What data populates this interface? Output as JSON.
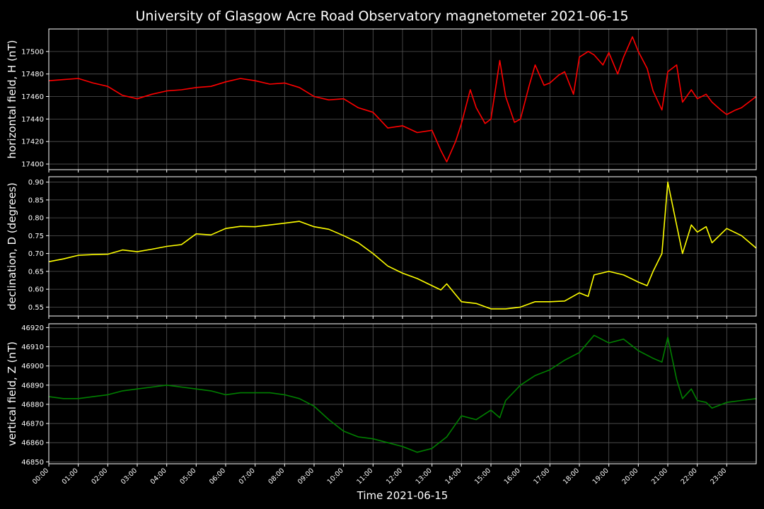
{
  "chart_data": [
    {
      "type": "line",
      "title": "University of Glasgow Acre Road Observatory magnetometer 2021-06-15",
      "ylabel": "horizontal field, H (nT)",
      "xlabel": "",
      "ylim": [
        17395,
        17520
      ],
      "yticks": [
        17400,
        17420,
        17440,
        17460,
        17480,
        17500
      ],
      "grid": true,
      "series": [
        {
          "color": "#ff0000",
          "x": [
            0,
            0.5,
            1,
            1.5,
            2,
            2.5,
            3,
            3.5,
            4,
            4.5,
            5,
            5.5,
            6,
            6.5,
            7,
            7.5,
            8,
            8.5,
            9,
            9.5,
            10,
            10.5,
            11,
            11.5,
            12,
            12.5,
            13,
            13.3,
            13.5,
            13.8,
            14,
            14.3,
            14.5,
            14.8,
            15,
            15.3,
            15.5,
            15.8,
            16,
            16.3,
            16.5,
            16.8,
            17,
            17.3,
            17.5,
            17.8,
            18,
            18.3,
            18.5,
            18.8,
            19,
            19.3,
            19.5,
            19.8,
            20,
            20.3,
            20.5,
            20.8,
            21,
            21.3,
            21.5,
            21.8,
            22,
            22.3,
            22.5,
            22.8,
            23,
            23.3,
            23.5,
            24
          ],
          "values": [
            17474,
            17475,
            17476,
            17472,
            17469,
            17461,
            17458,
            17462,
            17465,
            17466,
            17468,
            17469,
            17473,
            17476,
            17474,
            17471,
            17472,
            17468,
            17460,
            17457,
            17458,
            17450,
            17446,
            17432,
            17434,
            17428,
            17430,
            17412,
            17402,
            17420,
            17436,
            17466,
            17450,
            17436,
            17440,
            17492,
            17460,
            17437,
            17440,
            17470,
            17488,
            17470,
            17472,
            17479,
            17482,
            17462,
            17495,
            17500,
            17497,
            17488,
            17499,
            17480,
            17495,
            17513,
            17500,
            17485,
            17465,
            17448,
            17482,
            17488,
            17455,
            17466,
            17458,
            17462,
            17455,
            17448,
            17444,
            17448,
            17450,
            17460
          ]
        }
      ]
    },
    {
      "type": "line",
      "ylabel": "declination, D (degrees)",
      "xlabel": "",
      "ylim": [
        0.525,
        0.915
      ],
      "yticks": [
        0.55,
        0.6,
        0.65,
        0.7,
        0.75,
        0.8,
        0.85,
        0.9
      ],
      "grid": true,
      "series": [
        {
          "color": "#ffff00",
          "x": [
            0,
            0.5,
            1,
            1.5,
            2,
            2.5,
            3,
            3.5,
            4,
            4.5,
            5,
            5.5,
            6,
            6.5,
            7,
            7.5,
            8,
            8.5,
            9,
            9.5,
            10,
            10.5,
            11,
            11.5,
            12,
            12.5,
            13,
            13.3,
            13.5,
            14,
            14.5,
            15,
            15.5,
            16,
            16.5,
            17,
            17.5,
            18,
            18.3,
            18.5,
            19,
            19.5,
            20,
            20.3,
            20.5,
            20.8,
            21,
            21.2,
            21.5,
            21.8,
            22,
            22.3,
            22.5,
            23,
            23.5,
            24
          ],
          "values": [
            0.677,
            0.685,
            0.695,
            0.697,
            0.698,
            0.71,
            0.705,
            0.712,
            0.72,
            0.725,
            0.755,
            0.752,
            0.77,
            0.776,
            0.775,
            0.78,
            0.785,
            0.79,
            0.775,
            0.768,
            0.75,
            0.73,
            0.7,
            0.665,
            0.645,
            0.63,
            0.61,
            0.598,
            0.615,
            0.565,
            0.56,
            0.545,
            0.545,
            0.55,
            0.565,
            0.565,
            0.567,
            0.59,
            0.58,
            0.64,
            0.65,
            0.64,
            0.62,
            0.61,
            0.65,
            0.7,
            0.9,
            0.82,
            0.7,
            0.78,
            0.76,
            0.775,
            0.73,
            0.77,
            0.75,
            0.715
          ]
        }
      ]
    },
    {
      "type": "line",
      "ylabel": "vertical field, Z (nT)",
      "xlabel": "Time 2021-06-15",
      "ylim": [
        46849,
        46922
      ],
      "yticks": [
        46850,
        46860,
        46870,
        46880,
        46890,
        46900,
        46910,
        46920
      ],
      "grid": true,
      "categories": [
        "00:00",
        "01:00",
        "02:00",
        "03:00",
        "04:00",
        "05:00",
        "06:00",
        "07:00",
        "08:00",
        "09:00",
        "10:00",
        "11:00",
        "12:00",
        "13:00",
        "14:00",
        "15:00",
        "16:00",
        "17:00",
        "18:00",
        "19:00",
        "20:00",
        "21:00",
        "22:00",
        "23:00"
      ],
      "series": [
        {
          "color": "#008000",
          "x": [
            0,
            0.5,
            1,
            1.5,
            2,
            2.5,
            3,
            3.5,
            4,
            4.5,
            5,
            5.5,
            6,
            6.5,
            7,
            7.5,
            8,
            8.5,
            9,
            9.5,
            10,
            10.5,
            11,
            11.5,
            12,
            12.5,
            13,
            13.5,
            14,
            14.5,
            15,
            15.3,
            15.5,
            16,
            16.5,
            17,
            17.5,
            18,
            18.5,
            19,
            19.5,
            20,
            20.5,
            20.8,
            21,
            21.3,
            21.5,
            21.8,
            22,
            22.3,
            22.5,
            23,
            23.5,
            24
          ],
          "values": [
            46884,
            46883,
            46883,
            46884,
            46885,
            46887,
            46888,
            46889,
            46890,
            46889,
            46888,
            46887,
            46885,
            46886,
            46886,
            46886,
            46885,
            46883,
            46879,
            46872,
            46866,
            46863,
            46862,
            46860,
            46858,
            46855,
            46857,
            46863,
            46874,
            46872,
            46877,
            46873,
            46882,
            46890,
            46895,
            46898,
            46903,
            46907,
            46916,
            46912,
            46914,
            46908,
            46904,
            46902,
            46915,
            46893,
            46883,
            46888,
            46882,
            46881,
            46878,
            46881,
            46882,
            46883
          ]
        }
      ]
    }
  ]
}
